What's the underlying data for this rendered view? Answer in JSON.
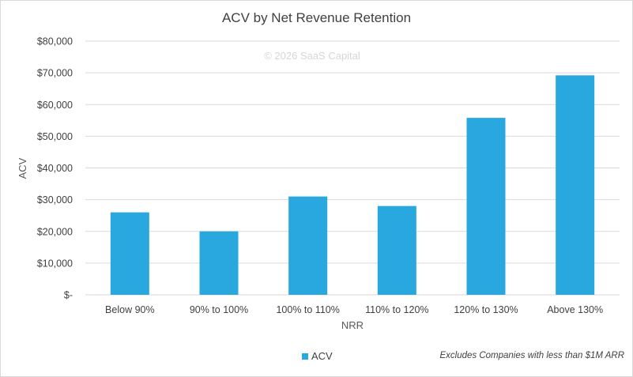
{
  "chart_data": {
    "type": "bar",
    "title": "ACV by Net Revenue Retention",
    "watermark": "© 2026 SaaS Capital",
    "xlabel": "NRR",
    "ylabel": "ACV",
    "categories": [
      "Below 90%",
      "90% to 100%",
      "100% to 110%",
      "110% to 120%",
      "120% to 130%",
      "Above 130%"
    ],
    "series": [
      {
        "name": "ACV",
        "values": [
          26000,
          20000,
          31000,
          28000,
          55800,
          69200
        ],
        "color": "#29a8e0"
      }
    ],
    "ylim": [
      0,
      80000
    ],
    "yticks": [
      0,
      10000,
      20000,
      30000,
      40000,
      50000,
      60000,
      70000,
      80000
    ],
    "ytick_labels": [
      "$-",
      "$10,000",
      "$20,000",
      "$30,000",
      "$40,000",
      "$50,000",
      "$60,000",
      "$70,000",
      "$80,000"
    ],
    "grid": true,
    "legend": "bottom",
    "footnote": "Excludes Companies with less than $1M ARR"
  }
}
